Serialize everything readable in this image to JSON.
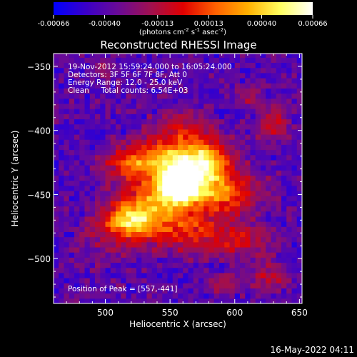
{
  "chart_data": {
    "type": "heatmap",
    "title": "Reconstructed RHESSI Image",
    "xlabel": "Heliocentric X (arcsec)",
    "ylabel": "Heliocentric Y (arcsec)",
    "xlim": [
      460,
      652
    ],
    "ylim": [
      -535,
      -340
    ],
    "x_ticks": [
      500,
      550,
      600,
      650
    ],
    "y_ticks": [
      -350,
      -400,
      -450,
      -500
    ],
    "colorbar": {
      "min": -0.00066,
      "max": 0.00066,
      "ticks": [
        "-0.00066",
        "-0.00040",
        "-0.00013",
        "0.00013",
        "0.00040",
        "0.00066"
      ],
      "tick_values": [
        -0.00066,
        -0.0004,
        -0.00013,
        0.00013,
        0.0004,
        0.00066
      ],
      "unit_label": {
        "pre": "(photons cm",
        "sup1": "-2",
        "mid1": " s",
        "sup2": "-1",
        "mid2": " asec",
        "sup3": "-2",
        "post": ")"
      }
    },
    "annotations": [
      "19-Nov-2012 15:59:24.000 to 16:05:24.000",
      "Detectors: 3F 5F 6F 7F 8F, Att 0",
      "Energy Range: 12.0 - 25.0 keV",
      "Clean     Total counts: 6.54E+03"
    ],
    "peak_label": "Position of Peak = [557,-441]",
    "peak": {
      "x": 557,
      "y": -441
    },
    "grid_resolution_arcsec": 4,
    "sources": [
      {
        "x": 557,
        "y": -441,
        "sx": 10,
        "sy": 9,
        "amp": 1.0
      },
      {
        "x": 540,
        "y": -455,
        "sx": 34,
        "sy": 15,
        "angle_deg": 35,
        "amp": 0.55
      },
      {
        "x": 520,
        "y": -470,
        "sx": 14,
        "sy": 9,
        "amp": 0.45
      },
      {
        "x": 552,
        "y": -418,
        "sx": 22,
        "sy": 10,
        "amp": 0.55
      },
      {
        "x": 588,
        "y": -448,
        "sx": 20,
        "sy": 11,
        "amp": 0.55
      },
      {
        "x": 578,
        "y": -425,
        "sx": 12,
        "sy": 10,
        "amp": 0.45
      },
      {
        "x": 522,
        "y": -428,
        "sx": 16,
        "sy": 9,
        "amp": 0.4
      },
      {
        "x": 565,
        "y": -478,
        "sx": 18,
        "sy": 12,
        "amp": 0.35
      },
      {
        "x": 605,
        "y": -485,
        "sx": 16,
        "sy": 10,
        "amp": 0.28
      },
      {
        "x": 560,
        "y": -395,
        "sx": 16,
        "sy": 8,
        "amp": 0.25
      },
      {
        "x": 630,
        "y": -395,
        "sx": 8,
        "sy": 10,
        "amp": 0.3
      },
      {
        "x": 610,
        "y": -372,
        "sx": 7,
        "sy": 6,
        "amp": 0.22
      },
      {
        "x": 625,
        "y": -515,
        "sx": 10,
        "sy": 8,
        "amp": 0.25
      },
      {
        "x": 590,
        "y": -520,
        "sx": 10,
        "sy": 6,
        "amp": 0.18
      },
      {
        "x": 500,
        "y": -350,
        "sx": 8,
        "sy": 6,
        "amp": 0.15
      }
    ],
    "colors": {
      "background": "#000000",
      "foreground": "#ffffff",
      "colormap_stops": [
        "#0000ff",
        "#3a00c8",
        "#6a0a96",
        "#a01050",
        "#e00000",
        "#ff6000",
        "#ffb000",
        "#ffff60",
        "#ffffff"
      ]
    }
  },
  "footer": {
    "timestamp": "16-May-2022 04:11"
  }
}
